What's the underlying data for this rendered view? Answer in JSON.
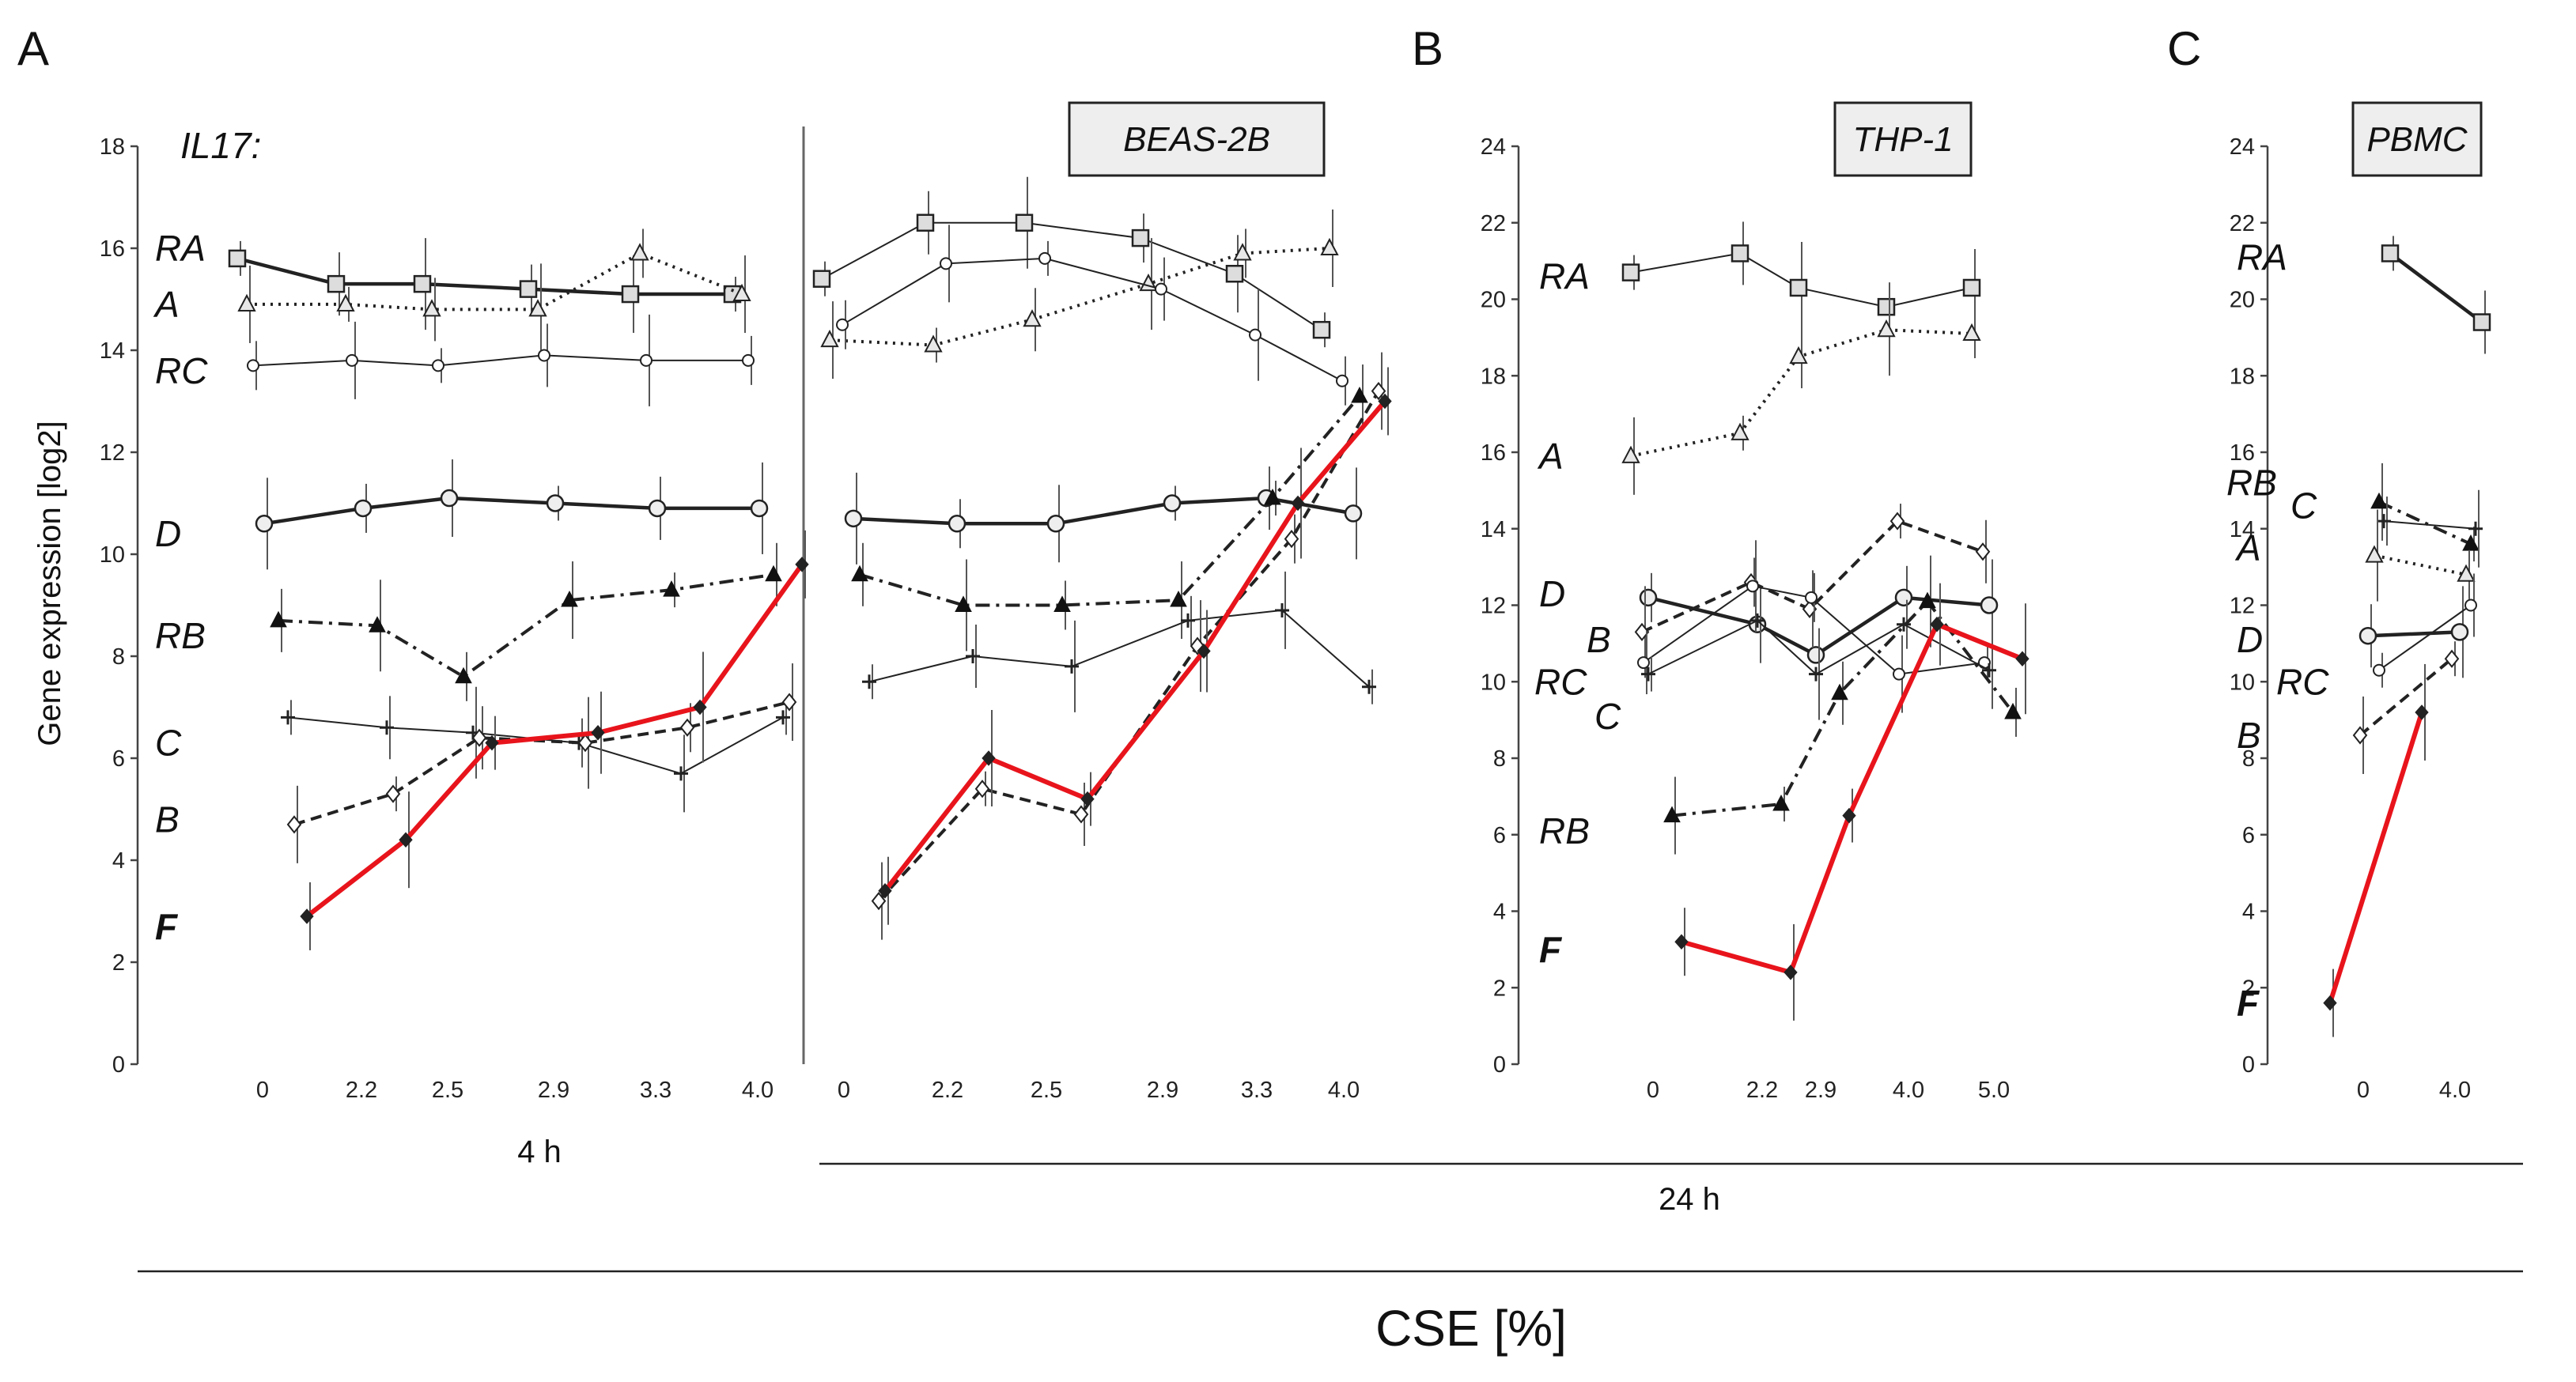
{
  "figure": {
    "panel_labels": [
      "A",
      "B",
      "C"
    ],
    "gene_label": "IL17:",
    "y_axis_label": "Gene expression [log2]",
    "time_label_4h": "4 h",
    "time_label_24h": "24 h",
    "x_axis_label": "CSE [%]"
  },
  "colors": {
    "F_series": "#e8141c",
    "default_series": "#222222",
    "box_fill": "#eeeeee"
  },
  "chart_data": [
    {
      "type": "line",
      "panel": "A",
      "box_label": "BEAS-2B",
      "ylim": [
        0,
        18
      ],
      "yticks": [
        0,
        2,
        4,
        6,
        8,
        10,
        12,
        14,
        16,
        18
      ],
      "subpanels": [
        {
          "time": "4 h",
          "x": [
            "0",
            "2.2",
            "2.5",
            "2.9",
            "3.3",
            "4.0"
          ],
          "series": [
            {
              "name": "RA",
              "marker": "square",
              "style": "solid-bold",
              "values": [
                15.8,
                15.3,
                15.3,
                15.2,
                15.1,
                15.1
              ]
            },
            {
              "name": "A",
              "marker": "triangle-open",
              "style": "dotted",
              "values": [
                14.9,
                14.9,
                14.8,
                14.8,
                15.9,
                15.1
              ]
            },
            {
              "name": "RC",
              "marker": "circle-small",
              "style": "thin",
              "values": [
                13.7,
                13.8,
                13.7,
                13.9,
                13.8,
                13.8
              ]
            },
            {
              "name": "D",
              "marker": "circle",
              "style": "solid-bold",
              "values": [
                10.6,
                10.9,
                11.1,
                11.0,
                10.9,
                10.9
              ]
            },
            {
              "name": "RB",
              "marker": "triangle-filled",
              "style": "dashdot",
              "values": [
                8.7,
                8.6,
                7.6,
                9.1,
                9.3,
                9.6
              ]
            },
            {
              "name": "C",
              "marker": "plus",
              "style": "thin",
              "values": [
                6.8,
                6.6,
                6.5,
                6.3,
                5.7,
                6.8
              ]
            },
            {
              "name": "B",
              "marker": "diamond-open",
              "style": "dashed",
              "values": [
                4.7,
                5.3,
                6.4,
                6.3,
                6.6,
                7.1
              ]
            },
            {
              "name": "F",
              "marker": "diamond-filled",
              "style": "red",
              "values": [
                2.9,
                4.4,
                6.3,
                6.5,
                7.0,
                9.8
              ]
            }
          ]
        },
        {
          "time": "24 h",
          "x": [
            "0",
            "2.2",
            "2.5",
            "2.9",
            "3.3",
            "4.0"
          ],
          "series": [
            {
              "name": "RA",
              "marker": "square",
              "style": "thin",
              "values": [
                15.4,
                16.5,
                16.5,
                16.2,
                15.5,
                14.4
              ]
            },
            {
              "name": "A",
              "marker": "triangle-open",
              "style": "dotted",
              "values": [
                14.2,
                14.1,
                14.6,
                15.3,
                15.9,
                16.0
              ]
            },
            {
              "name": "RC",
              "marker": "circle-small",
              "style": "thin",
              "values": [
                14.5,
                15.7,
                15.8,
                15.2,
                14.3,
                13.4
              ]
            },
            {
              "name": "D",
              "marker": "circle",
              "style": "solid-bold",
              "values": [
                10.7,
                10.6,
                10.6,
                11.0,
                11.1,
                10.8
              ]
            },
            {
              "name": "RB",
              "marker": "triangle-filled",
              "style": "dashdot",
              "values": [
                9.6,
                9.0,
                9.0,
                9.1,
                11.1,
                13.1
              ]
            },
            {
              "name": "C",
              "marker": "plus",
              "style": "thin",
              "values": [
                7.5,
                8.0,
                7.8,
                8.7,
                8.9,
                7.4
              ]
            },
            {
              "name": "B",
              "marker": "diamond-open",
              "style": "dashed",
              "values": [
                3.2,
                5.4,
                4.9,
                8.2,
                10.3,
                13.2
              ]
            },
            {
              "name": "F",
              "marker": "diamond-filled",
              "style": "red",
              "values": [
                3.4,
                6.0,
                5.2,
                8.1,
                11.0,
                13.0
              ]
            }
          ]
        }
      ]
    },
    {
      "type": "line",
      "panel": "B",
      "box_label": "THP-1",
      "time": "24 h",
      "ylim": [
        0,
        24
      ],
      "yticks": [
        0,
        2,
        4,
        6,
        8,
        10,
        12,
        14,
        16,
        18,
        20,
        22,
        24
      ],
      "x": [
        "0",
        "2.2",
        "2.9",
        "4.0",
        "5.0"
      ],
      "series": [
        {
          "name": "RA",
          "marker": "square",
          "style": "thin",
          "values": [
            20.7,
            21.2,
            20.3,
            19.8,
            20.3
          ]
        },
        {
          "name": "A",
          "marker": "triangle-open",
          "style": "dotted",
          "values": [
            15.9,
            16.5,
            18.5,
            19.2,
            19.1
          ]
        },
        {
          "name": "D",
          "marker": "circle",
          "style": "solid-bold",
          "values": [
            12.2,
            11.5,
            10.7,
            12.2,
            12.0
          ]
        },
        {
          "name": "B",
          "marker": "diamond-open",
          "style": "dashed",
          "values": [
            11.3,
            12.6,
            11.9,
            14.2,
            13.4
          ]
        },
        {
          "name": "RC",
          "marker": "circle-small",
          "style": "thin",
          "values": [
            10.5,
            12.5,
            12.2,
            10.2,
            10.5
          ]
        },
        {
          "name": "C",
          "marker": "plus",
          "style": "thin",
          "values": [
            10.2,
            11.6,
            10.2,
            11.5,
            10.3
          ]
        },
        {
          "name": "RB",
          "marker": "triangle-filled",
          "style": "dashdot",
          "values": [
            6.5,
            6.8,
            9.7,
            12.1,
            9.2
          ]
        },
        {
          "name": "F",
          "marker": "diamond-filled",
          "style": "red",
          "values": [
            3.2,
            2.4,
            6.5,
            11.5,
            10.6
          ]
        }
      ]
    },
    {
      "type": "line",
      "panel": "C",
      "box_label": "PBMC",
      "time": "24 h",
      "ylim": [
        0,
        24
      ],
      "yticks": [
        0,
        2,
        4,
        6,
        8,
        10,
        12,
        14,
        16,
        18,
        20,
        22,
        24
      ],
      "x": [
        "0",
        "4.0"
      ],
      "series": [
        {
          "name": "RA",
          "marker": "square",
          "style": "solid-bold",
          "values": [
            21.2,
            19.4
          ]
        },
        {
          "name": "RB",
          "marker": "triangle-filled",
          "style": "dashdot",
          "values": [
            14.7,
            13.6
          ]
        },
        {
          "name": "C",
          "marker": "plus",
          "style": "thin",
          "values": [
            14.2,
            14.0
          ]
        },
        {
          "name": "A",
          "marker": "triangle-open",
          "style": "dotted",
          "values": [
            13.3,
            12.8
          ]
        },
        {
          "name": "D",
          "marker": "circle",
          "style": "solid-bold",
          "values": [
            11.2,
            11.3
          ]
        },
        {
          "name": "RC",
          "marker": "circle-small",
          "style": "thin",
          "values": [
            10.3,
            12.0
          ]
        },
        {
          "name": "B",
          "marker": "diamond-open",
          "style": "dashed",
          "values": [
            8.6,
            10.6
          ]
        },
        {
          "name": "F",
          "marker": "diamond-filled",
          "style": "red",
          "values": [
            1.6,
            9.2
          ]
        }
      ]
    }
  ]
}
